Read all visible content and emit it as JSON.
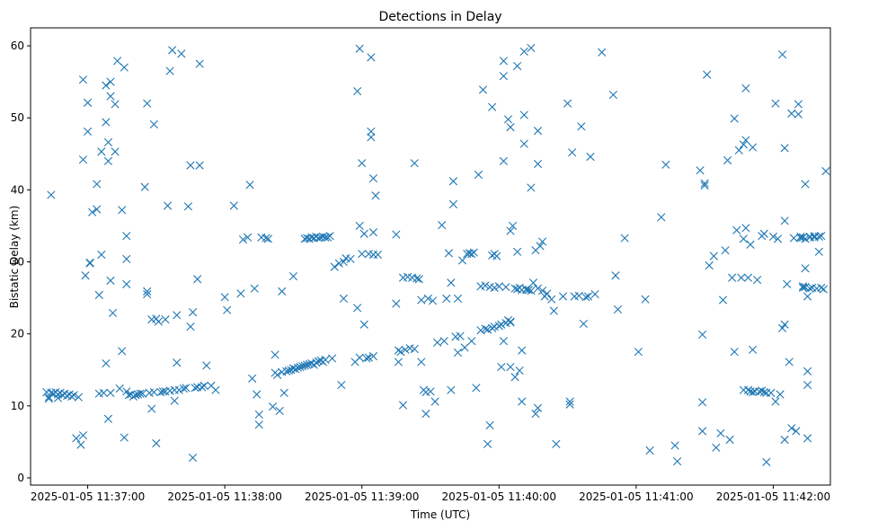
{
  "chart_data": {
    "type": "scatter",
    "title": "Detections in Delay",
    "xlabel": "Time (UTC)",
    "ylabel": "Bistatic Delay (km)",
    "marker": "x",
    "color": "#1f77b4",
    "xlim_seconds": [
      -25,
      325
    ],
    "ylim": [
      -1,
      62.5
    ],
    "x_ticks": [
      {
        "value": 0,
        "label": "2025-01-05 11:37:00"
      },
      {
        "value": 60,
        "label": "2025-01-05 11:38:00"
      },
      {
        "value": 120,
        "label": "2025-01-05 11:39:00"
      },
      {
        "value": 180,
        "label": "2025-01-05 11:40:00"
      },
      {
        "value": 240,
        "label": "2025-01-05 11:41:00"
      },
      {
        "value": 300,
        "label": "2025-01-05 11:42:00"
      }
    ],
    "y_ticks": [
      {
        "value": 0,
        "label": "0"
      },
      {
        "value": 10,
        "label": "10"
      },
      {
        "value": 20,
        "label": "20"
      },
      {
        "value": 30,
        "label": "30"
      },
      {
        "value": 40,
        "label": "40"
      },
      {
        "value": 50,
        "label": "50"
      },
      {
        "value": 60,
        "label": "60"
      }
    ],
    "x_note": "x values are seconds relative to 2025-01-05 11:37:00 UTC",
    "points": [
      [
        -18,
        11.9
      ],
      [
        -17,
        11.2
      ],
      [
        -16,
        11.8
      ],
      [
        -15,
        11.7
      ],
      [
        -14,
        11.9
      ],
      [
        -13,
        11.6
      ],
      [
        -12,
        11.8
      ],
      [
        -11,
        11.5
      ],
      [
        -10,
        11.7
      ],
      [
        -9,
        11.4
      ],
      [
        -8,
        11.6
      ],
      [
        -7,
        11.3
      ],
      [
        -6,
        11.5
      ],
      [
        -4,
        11.2
      ],
      [
        -17,
        11.0
      ],
      [
        -13,
        11.1
      ],
      [
        -16,
        39.3
      ],
      [
        -5,
        5.5
      ],
      [
        -3,
        4.6
      ],
      [
        -2,
        5.9
      ],
      [
        -2,
        55.3
      ],
      [
        -2,
        44.2
      ],
      [
        -1,
        28.1
      ],
      [
        0,
        52.1
      ],
      [
        0,
        48.1
      ],
      [
        1,
        29.8
      ],
      [
        1,
        29.9
      ],
      [
        2,
        36.9
      ],
      [
        4,
        37.3
      ],
      [
        4,
        40.8
      ],
      [
        5,
        25.4
      ],
      [
        5,
        11.7
      ],
      [
        6,
        45.3
      ],
      [
        6,
        31.0
      ],
      [
        7,
        11.8
      ],
      [
        8,
        15.9
      ],
      [
        8,
        49.4
      ],
      [
        8,
        54.5
      ],
      [
        9,
        46.6
      ],
      [
        9,
        8.2
      ],
      [
        9,
        44.0
      ],
      [
        10,
        55.0
      ],
      [
        10,
        53.0
      ],
      [
        10,
        27.4
      ],
      [
        10,
        11.8
      ],
      [
        11,
        22.9
      ],
      [
        12,
        45.3
      ],
      [
        12,
        51.9
      ],
      [
        13,
        57.9
      ],
      [
        14,
        12.4
      ],
      [
        15,
        37.2
      ],
      [
        15,
        17.6
      ],
      [
        16,
        57.0
      ],
      [
        16,
        5.6
      ],
      [
        17,
        33.6
      ],
      [
        17,
        30.4
      ],
      [
        17,
        26.9
      ],
      [
        17,
        12.0
      ],
      [
        18,
        11.5
      ],
      [
        19,
        11.6
      ],
      [
        20,
        11.3
      ],
      [
        21,
        11.5
      ],
      [
        22,
        11.6
      ],
      [
        23,
        11.7
      ],
      [
        24,
        11.7
      ],
      [
        25,
        40.4
      ],
      [
        26,
        52.0
      ],
      [
        26,
        25.5
      ],
      [
        26,
        25.9
      ],
      [
        27,
        11.8
      ],
      [
        28,
        9.6
      ],
      [
        28,
        22.0
      ],
      [
        29,
        49.1
      ],
      [
        29,
        11.9
      ],
      [
        30,
        4.8
      ],
      [
        30,
        22.1
      ],
      [
        31,
        21.7
      ],
      [
        32,
        11.9
      ],
      [
        33,
        12.0
      ],
      [
        34,
        22.0
      ],
      [
        34,
        12.0
      ],
      [
        35,
        37.8
      ],
      [
        36,
        12.1
      ],
      [
        36,
        56.5
      ],
      [
        37,
        59.4
      ],
      [
        38,
        12.2
      ],
      [
        38,
        10.7
      ],
      [
        39,
        16.0
      ],
      [
        39,
        22.6
      ],
      [
        40,
        12.2
      ],
      [
        41,
        58.9
      ],
      [
        42,
        12.4
      ],
      [
        43,
        12.5
      ],
      [
        44,
        37.7
      ],
      [
        45,
        43.4
      ],
      [
        45,
        21.0
      ],
      [
        46,
        2.8
      ],
      [
        46,
        23.0
      ],
      [
        47,
        12.5
      ],
      [
        48,
        12.6
      ],
      [
        48,
        27.6
      ],
      [
        49,
        57.5
      ],
      [
        49,
        43.4
      ],
      [
        50,
        12.6
      ],
      [
        51,
        12.8
      ],
      [
        52,
        15.6
      ],
      [
        54,
        12.8
      ],
      [
        56,
        12.2
      ],
      [
        60,
        25.1
      ],
      [
        61,
        23.3
      ],
      [
        64,
        37.8
      ],
      [
        67,
        25.6
      ],
      [
        68,
        33.1
      ],
      [
        70,
        33.4
      ],
      [
        71,
        40.7
      ],
      [
        72,
        13.8
      ],
      [
        73,
        26.3
      ],
      [
        74,
        11.6
      ],
      [
        75,
        8.8
      ],
      [
        75,
        7.4
      ],
      [
        76,
        33.4
      ],
      [
        78,
        33.3
      ],
      [
        79,
        33.2
      ],
      [
        81,
        9.9
      ],
      [
        82,
        17.1
      ],
      [
        82,
        14.6
      ],
      [
        83,
        14.3
      ],
      [
        84,
        9.3
      ],
      [
        85,
        14.7
      ],
      [
        85,
        25.9
      ],
      [
        86,
        11.8
      ],
      [
        87,
        14.8
      ],
      [
        88,
        14.9
      ],
      [
        89,
        15.0
      ],
      [
        90,
        15.2
      ],
      [
        90,
        28.0
      ],
      [
        91,
        15.1
      ],
      [
        92,
        15.3
      ],
      [
        93,
        15.4
      ],
      [
        94,
        15.5
      ],
      [
        95,
        33.2
      ],
      [
        95,
        15.6
      ],
      [
        96,
        33.3
      ],
      [
        96,
        15.7
      ],
      [
        97,
        33.2
      ],
      [
        97,
        15.8
      ],
      [
        98,
        33.4
      ],
      [
        98,
        15.9
      ],
      [
        99,
        33.3
      ],
      [
        99,
        15.7
      ],
      [
        100,
        33.5
      ],
      [
        100,
        16.0
      ],
      [
        101,
        33.3
      ],
      [
        101,
        16.2
      ],
      [
        102,
        33.4
      ],
      [
        102,
        16.3
      ],
      [
        103,
        33.5
      ],
      [
        103,
        16.1
      ],
      [
        104,
        33.4
      ],
      [
        104,
        16.4
      ],
      [
        105,
        33.4
      ],
      [
        106,
        33.6
      ],
      [
        107,
        16.6
      ],
      [
        108,
        29.3
      ],
      [
        110,
        29.8
      ],
      [
        111,
        12.9
      ],
      [
        112,
        24.9
      ],
      [
        112,
        30.0
      ],
      [
        113,
        30.5
      ],
      [
        115,
        30.4
      ],
      [
        117,
        16.1
      ],
      [
        118,
        53.7
      ],
      [
        118,
        23.6
      ],
      [
        119,
        59.6
      ],
      [
        119,
        35.0
      ],
      [
        119,
        16.7
      ],
      [
        120,
        31.1
      ],
      [
        120,
        43.7
      ],
      [
        121,
        21.3
      ],
      [
        121,
        33.9
      ],
      [
        122,
        16.6
      ],
      [
        123,
        31.1
      ],
      [
        123,
        16.7
      ],
      [
        124,
        58.4
      ],
      [
        124,
        48.1
      ],
      [
        124,
        47.3
      ],
      [
        125,
        31.0
      ],
      [
        125,
        34.1
      ],
      [
        125,
        16.9
      ],
      [
        125,
        41.6
      ],
      [
        126,
        39.2
      ],
      [
        127,
        31.0
      ],
      [
        135,
        33.8
      ],
      [
        135,
        24.2
      ],
      [
        136,
        17.7
      ],
      [
        136,
        16.1
      ],
      [
        137,
        17.5
      ],
      [
        138,
        10.1
      ],
      [
        138,
        27.8
      ],
      [
        139,
        17.8
      ],
      [
        140,
        27.9
      ],
      [
        141,
        18.0
      ],
      [
        142,
        27.8
      ],
      [
        143,
        17.9
      ],
      [
        143,
        43.7
      ],
      [
        144,
        27.7
      ],
      [
        145,
        27.6
      ],
      [
        146,
        24.7
      ],
      [
        146,
        16.1
      ],
      [
        147,
        12.2
      ],
      [
        148,
        11.9
      ],
      [
        148,
        8.9
      ],
      [
        149,
        24.9
      ],
      [
        150,
        12.0
      ],
      [
        151,
        24.6
      ],
      [
        152,
        10.6
      ],
      [
        153,
        18.8
      ],
      [
        155,
        35.1
      ],
      [
        156,
        19.0
      ],
      [
        157,
        24.9
      ],
      [
        158,
        31.2
      ],
      [
        159,
        12.2
      ],
      [
        159,
        27.1
      ],
      [
        160,
        41.2
      ],
      [
        160,
        38.0
      ],
      [
        161,
        19.6
      ],
      [
        162,
        24.9
      ],
      [
        162,
        17.4
      ],
      [
        163,
        19.7
      ],
      [
        164,
        30.2
      ],
      [
        165,
        18.1
      ],
      [
        166,
        31.1
      ],
      [
        167,
        31.2
      ],
      [
        168,
        19.0
      ],
      [
        168,
        31.1
      ],
      [
        169,
        31.3
      ],
      [
        170,
        12.5
      ],
      [
        171,
        42.1
      ],
      [
        172,
        20.5
      ],
      [
        172,
        26.6
      ],
      [
        173,
        53.9
      ],
      [
        174,
        26.7
      ],
      [
        174,
        20.7
      ],
      [
        175,
        4.7
      ],
      [
        175,
        20.6
      ],
      [
        176,
        26.5
      ],
      [
        176,
        7.3
      ],
      [
        177,
        30.9
      ],
      [
        177,
        51.5
      ],
      [
        177,
        20.8
      ],
      [
        178,
        31.1
      ],
      [
        178,
        26.4
      ],
      [
        178,
        21.0
      ],
      [
        179,
        30.8
      ],
      [
        180,
        26.6
      ],
      [
        180,
        21.1
      ],
      [
        181,
        15.4
      ],
      [
        181,
        21.3
      ],
      [
        182,
        19.0
      ],
      [
        182,
        44.0
      ],
      [
        182,
        55.8
      ],
      [
        182,
        57.9
      ],
      [
        183,
        26.5
      ],
      [
        183,
        21.5
      ],
      [
        184,
        49.8
      ],
      [
        184,
        21.9
      ],
      [
        185,
        21.7
      ],
      [
        185,
        48.7
      ],
      [
        185,
        34.3
      ],
      [
        185,
        21.6
      ],
      [
        185,
        15.4
      ],
      [
        186,
        35.0
      ],
      [
        187,
        26.3
      ],
      [
        187,
        14.0
      ],
      [
        188,
        31.4
      ],
      [
        188,
        57.2
      ],
      [
        188,
        26.2
      ],
      [
        189,
        14.9
      ],
      [
        189,
        26.4
      ],
      [
        190,
        17.7
      ],
      [
        190,
        10.6
      ],
      [
        190,
        26.1
      ],
      [
        191,
        59.2
      ],
      [
        191,
        50.4
      ],
      [
        191,
        46.4
      ],
      [
        192,
        26.2
      ],
      [
        192,
        26.1
      ],
      [
        193,
        26.1
      ],
      [
        194,
        59.7
      ],
      [
        194,
        40.3
      ],
      [
        194,
        26.0
      ],
      [
        195,
        27.1
      ],
      [
        196,
        31.6
      ],
      [
        196,
        8.9
      ],
      [
        197,
        48.2
      ],
      [
        197,
        26.3
      ],
      [
        197,
        43.6
      ],
      [
        197,
        9.7
      ],
      [
        198,
        32.2
      ],
      [
        199,
        32.8
      ],
      [
        199,
        26.0
      ],
      [
        200,
        25.2
      ],
      [
        201,
        25.6
      ],
      [
        203,
        24.8
      ],
      [
        204,
        23.2
      ],
      [
        205,
        4.7
      ],
      [
        208,
        25.2
      ],
      [
        210,
        52.0
      ],
      [
        211,
        10.6
      ],
      [
        211,
        10.2
      ],
      [
        212,
        45.2
      ],
      [
        213,
        25.2
      ],
      [
        215,
        25.3
      ],
      [
        216,
        48.8
      ],
      [
        217,
        21.4
      ],
      [
        218,
        25.1
      ],
      [
        219,
        25.2
      ],
      [
        220,
        44.6
      ],
      [
        222,
        25.5
      ],
      [
        225,
        59.1
      ],
      [
        230,
        53.2
      ],
      [
        231,
        28.1
      ],
      [
        232,
        23.4
      ],
      [
        235,
        33.3
      ],
      [
        241,
        17.5
      ],
      [
        244,
        24.8
      ],
      [
        246,
        3.8
      ],
      [
        251,
        36.2
      ],
      [
        253,
        43.5
      ],
      [
        257,
        4.5
      ],
      [
        258,
        2.3
      ],
      [
        268,
        42.7
      ],
      [
        269,
        10.5
      ],
      [
        269,
        19.9
      ],
      [
        269,
        6.5
      ],
      [
        270,
        40.9
      ],
      [
        270,
        40.6
      ],
      [
        271,
        56.0
      ],
      [
        272,
        29.5
      ],
      [
        274,
        30.8
      ],
      [
        275,
        4.2
      ],
      [
        277,
        6.2
      ],
      [
        278,
        24.7
      ],
      [
        279,
        31.6
      ],
      [
        280,
        44.1
      ],
      [
        281,
        5.3
      ],
      [
        282,
        27.8
      ],
      [
        283,
        49.9
      ],
      [
        283,
        17.5
      ],
      [
        284,
        34.4
      ],
      [
        285,
        45.5
      ],
      [
        286,
        27.8
      ],
      [
        287,
        46.3
      ],
      [
        287,
        33.2
      ],
      [
        287,
        12.2
      ],
      [
        288,
        34.7
      ],
      [
        288,
        46.9
      ],
      [
        288,
        54.1
      ],
      [
        289,
        12.2
      ],
      [
        289,
        27.8
      ],
      [
        290,
        32.4
      ],
      [
        290,
        12.0
      ],
      [
        291,
        45.9
      ],
      [
        291,
        17.8
      ],
      [
        291,
        11.9
      ],
      [
        292,
        12.0
      ],
      [
        293,
        27.5
      ],
      [
        294,
        12.0
      ],
      [
        295,
        33.6
      ],
      [
        295,
        12.1
      ],
      [
        296,
        33.9
      ],
      [
        296,
        11.9
      ],
      [
        297,
        11.8
      ],
      [
        297,
        2.2
      ],
      [
        299,
        11.8
      ],
      [
        300,
        33.5
      ],
      [
        301,
        52.0
      ],
      [
        301,
        10.6
      ],
      [
        302,
        33.2
      ],
      [
        303,
        11.6
      ],
      [
        304,
        58.8
      ],
      [
        304,
        20.8
      ],
      [
        305,
        21.3
      ],
      [
        305,
        5.3
      ],
      [
        305,
        35.7
      ],
      [
        305,
        45.8
      ],
      [
        306,
        26.9
      ],
      [
        307,
        16.1
      ],
      [
        308,
        50.6
      ],
      [
        308,
        6.9
      ],
      [
        309,
        33.3
      ],
      [
        310,
        6.5
      ],
      [
        311,
        50.5
      ],
      [
        311,
        51.9
      ],
      [
        312,
        33.5
      ],
      [
        312,
        33.3
      ],
      [
        313,
        26.6
      ],
      [
        313,
        26.4
      ],
      [
        313,
        33.4
      ],
      [
        314,
        26.5
      ],
      [
        314,
        40.8
      ],
      [
        314,
        29.1
      ],
      [
        314,
        33.2
      ],
      [
        315,
        5.5
      ],
      [
        315,
        25.2
      ],
      [
        315,
        12.9
      ],
      [
        315,
        14.8
      ],
      [
        316,
        26.3
      ],
      [
        316,
        33.5
      ],
      [
        316,
        33.4
      ],
      [
        317,
        26.4
      ],
      [
        318,
        33.6
      ],
      [
        318,
        33.4
      ],
      [
        319,
        26.3
      ],
      [
        320,
        33.5
      ],
      [
        320,
        31.4
      ],
      [
        321,
        33.6
      ],
      [
        321,
        26.4
      ],
      [
        322,
        26.2
      ],
      [
        323,
        42.6
      ]
    ]
  }
}
